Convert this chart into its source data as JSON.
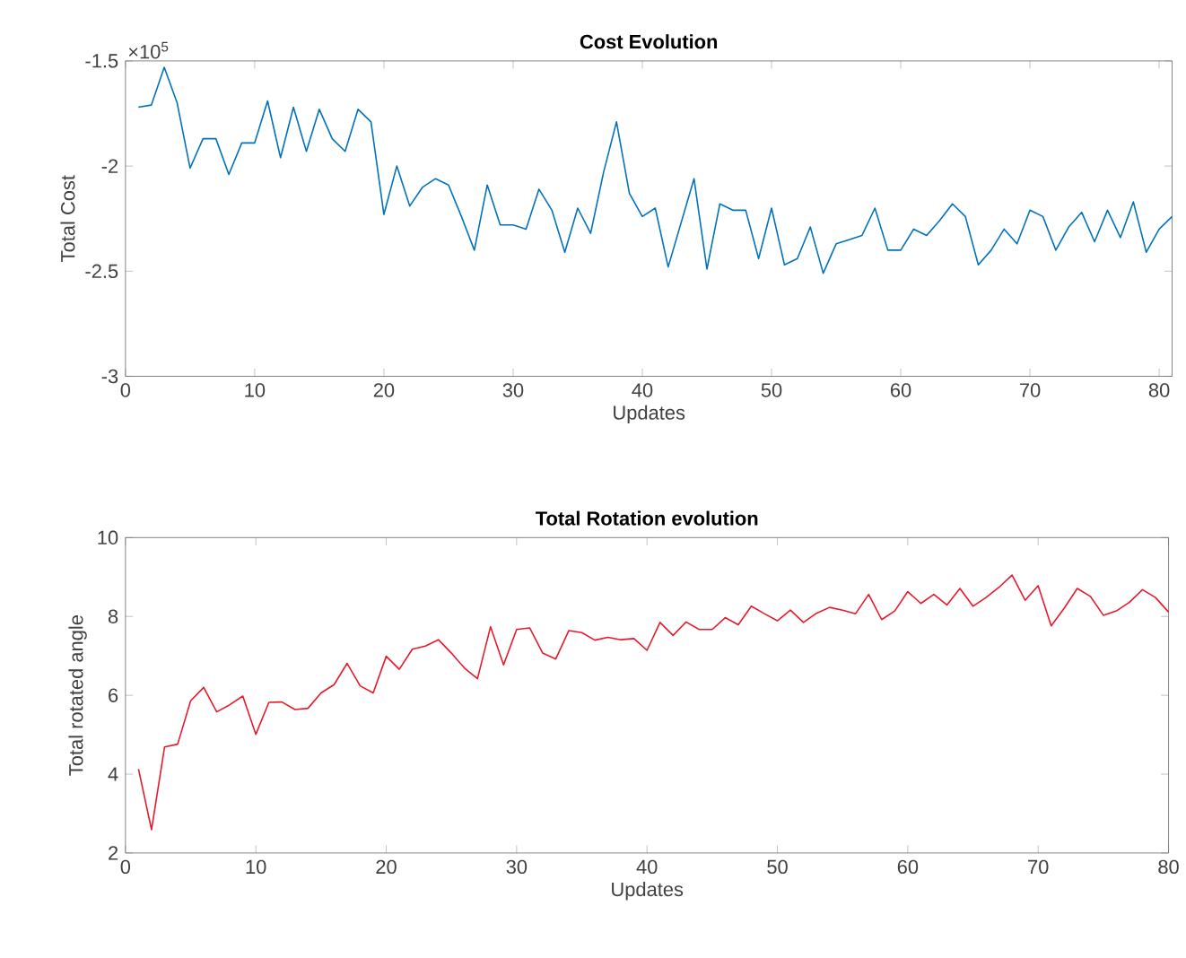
{
  "chart_data": [
    {
      "type": "line",
      "title": "Cost Evolution",
      "xlabel": "Updates",
      "ylabel": "Total Cost",
      "annotations": [
        "×10$^{5}$"
      ],
      "x": [
        1,
        2,
        3,
        4,
        5,
        6,
        7,
        8,
        9,
        10,
        11,
        12,
        13,
        14,
        15,
        16,
        17,
        18,
        19,
        20,
        21,
        22,
        23,
        24,
        25,
        26,
        27,
        28,
        29,
        30,
        31,
        32,
        33,
        34,
        35,
        36,
        37,
        38,
        39,
        40,
        41,
        42,
        43,
        44,
        45,
        46,
        47,
        48,
        49,
        50,
        51,
        52,
        53,
        54,
        55,
        56,
        57,
        58,
        59,
        60,
        61,
        62,
        63,
        64,
        65,
        66,
        67,
        68,
        69,
        70,
        71,
        72,
        73,
        74,
        75,
        76,
        77,
        78,
        79,
        80,
        81
      ],
      "series": [
        {
          "color": "#0072bd",
          "values": [
            -1.72,
            -1.71,
            -1.53,
            -1.7,
            -2.01,
            -1.87,
            -1.87,
            -2.04,
            -1.89,
            -1.89,
            -1.69,
            -1.96,
            -1.72,
            -1.93,
            -1.73,
            -1.87,
            -1.93,
            -1.73,
            -1.79,
            -2.23,
            -2.0,
            -2.19,
            -2.1,
            -2.06,
            -2.09,
            -2.24,
            -2.4,
            -2.09,
            -2.28,
            -2.28,
            -2.3,
            -2.11,
            -2.21,
            -2.41,
            -2.2,
            -2.32,
            -2.03,
            -1.79,
            -2.13,
            -2.24,
            -2.2,
            -2.48,
            -2.27,
            -2.06,
            -2.49,
            -2.18,
            -2.21,
            -2.21,
            -2.44,
            -2.2,
            -2.47,
            -2.44,
            -2.29,
            -2.51,
            -2.37,
            -2.35,
            -2.33,
            -2.2,
            -2.4,
            -2.4,
            -2.3,
            -2.33,
            -2.26,
            -2.18,
            -2.24,
            -2.47,
            -2.4,
            -2.3,
            -2.37,
            -2.21,
            -2.24,
            -2.4,
            -2.29,
            -2.22,
            -2.36,
            -2.21,
            -2.34,
            -2.17,
            -2.41,
            -2.3,
            -2.24
          ]
        }
      ],
      "xlim": [
        0,
        81
      ],
      "xticks": [
        0,
        10,
        20,
        30,
        40,
        50,
        60,
        70,
        80
      ],
      "ylim": [
        -3,
        -1.5
      ],
      "yticks": [
        -3,
        -2.5,
        -2,
        -1.5
      ]
    },
    {
      "type": "line",
      "title": "Total Rotation evolution",
      "xlabel": "Updates",
      "ylabel": "Total rotated angle",
      "x": [
        1,
        2,
        3,
        4,
        5,
        6,
        7,
        8,
        9,
        10,
        11,
        12,
        13,
        14,
        15,
        16,
        17,
        18,
        19,
        20,
        21,
        22,
        23,
        24,
        25,
        26,
        27,
        28,
        29,
        30,
        31,
        32,
        33,
        34,
        35,
        36,
        37,
        38,
        39,
        40,
        41,
        42,
        43,
        44,
        45,
        46,
        47,
        48,
        49,
        50,
        51,
        52,
        53,
        54,
        55,
        56,
        57,
        58,
        59,
        60,
        61,
        62,
        63,
        64,
        65,
        66,
        67,
        68,
        69,
        70,
        71,
        72,
        73,
        74,
        75,
        76,
        77,
        78,
        79,
        80
      ],
      "series": [
        {
          "color": "#e8192c",
          "values": [
            4.13,
            2.59,
            4.69,
            4.76,
            5.86,
            6.2,
            5.58,
            5.76,
            5.98,
            5.01,
            5.82,
            5.83,
            5.64,
            5.67,
            6.06,
            6.27,
            6.81,
            6.24,
            6.06,
            6.99,
            6.66,
            7.17,
            7.25,
            7.41,
            7.07,
            6.69,
            6.42,
            7.74,
            6.77,
            7.67,
            7.71,
            7.07,
            6.92,
            7.64,
            7.59,
            7.4,
            7.47,
            7.41,
            7.44,
            7.14,
            7.85,
            7.52,
            7.86,
            7.67,
            7.67,
            7.97,
            7.79,
            8.26,
            8.07,
            7.89,
            8.16,
            7.85,
            8.08,
            8.23,
            8.16,
            8.07,
            8.56,
            7.92,
            8.14,
            8.63,
            8.33,
            8.56,
            8.29,
            8.71,
            8.26,
            8.48,
            8.74,
            9.05,
            8.41,
            8.78,
            7.76,
            8.21,
            8.71,
            8.51,
            8.03,
            8.14,
            8.36,
            8.68,
            8.48,
            8.11
          ]
        }
      ],
      "xlim": [
        0,
        80
      ],
      "xticks": [
        0,
        10,
        20,
        30,
        40,
        50,
        60,
        70,
        80
      ],
      "ylim": [
        2,
        10
      ],
      "yticks": [
        2,
        4,
        6,
        8,
        10
      ]
    }
  ]
}
